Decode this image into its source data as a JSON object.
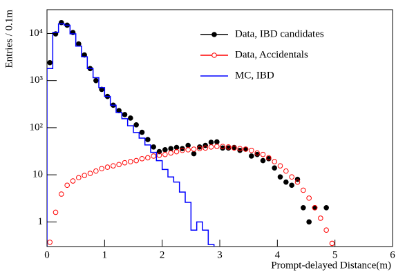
{
  "chart_data": {
    "type": "scatter",
    "xlabel": "Prompt-delayed Distance(m)",
    "ylabel": "Entries / 0.1m",
    "xlim": [
      0,
      6
    ],
    "xticks": [
      0,
      1,
      2,
      3,
      4,
      5,
      6
    ],
    "ylim": [
      0.3,
      32000
    ],
    "log_y": true,
    "yticks": [
      1,
      10,
      {
        "value": 100,
        "label": "10²"
      },
      {
        "value": 1000,
        "label": "10³"
      },
      {
        "value": 10000,
        "label": "10⁴"
      }
    ],
    "legend": "upper right",
    "series": [
      {
        "name": "Data, IBD candidates",
        "color": "#000000",
        "marker": "filled",
        "x": [
          0.05,
          0.15,
          0.25,
          0.35,
          0.45,
          0.55,
          0.65,
          0.75,
          0.85,
          0.95,
          1.05,
          1.15,
          1.25,
          1.35,
          1.45,
          1.55,
          1.65,
          1.75,
          1.85,
          1.95,
          2.05,
          2.15,
          2.25,
          2.35,
          2.45,
          2.55,
          2.65,
          2.75,
          2.85,
          2.95,
          3.05,
          3.15,
          3.25,
          3.35,
          3.45,
          3.55,
          3.65,
          3.75,
          3.85,
          3.95,
          4.05,
          4.15,
          4.25,
          4.35,
          4.45,
          4.55,
          4.65,
          4.85
        ],
        "values": [
          2400,
          9800,
          17000,
          15000,
          10500,
          6000,
          3500,
          1800,
          1000,
          650,
          460,
          300,
          230,
          190,
          160,
          115,
          80,
          56,
          39,
          31,
          34,
          36,
          38,
          36,
          42,
          28,
          39,
          42,
          49,
          50,
          37,
          37,
          38,
          33,
          35,
          25,
          27,
          20,
          22,
          14,
          9,
          7,
          6,
          8,
          2,
          1,
          2,
          2
        ]
      },
      {
        "name": "Data, Accidentals",
        "color": "#ff0000",
        "marker": "open",
        "x": [
          0.05,
          0.15,
          0.25,
          0.35,
          0.45,
          0.55,
          0.65,
          0.75,
          0.85,
          0.95,
          1.05,
          1.15,
          1.25,
          1.35,
          1.45,
          1.55,
          1.65,
          1.75,
          1.85,
          1.95,
          2.05,
          2.15,
          2.25,
          2.35,
          2.45,
          2.55,
          2.65,
          2.75,
          2.85,
          2.95,
          3.05,
          3.15,
          3.25,
          3.35,
          3.45,
          3.55,
          3.65,
          3.75,
          3.85,
          3.95,
          4.05,
          4.15,
          4.25,
          4.35,
          4.45,
          4.55,
          4.65,
          4.75,
          4.85,
          4.95
        ],
        "values": [
          0.37,
          1.6,
          3.9,
          6,
          7.4,
          8.7,
          9.7,
          10.7,
          12,
          13.5,
          14.5,
          15.5,
          16.5,
          18,
          19,
          20,
          22,
          23,
          25,
          26,
          27,
          29,
          31,
          33,
          34,
          35,
          36,
          37,
          39,
          40,
          40,
          39,
          37,
          36,
          35,
          33,
          29,
          27,
          23,
          19,
          15.5,
          12,
          9,
          7,
          4.7,
          3.2,
          2,
          1.2,
          0.67,
          0.35
        ]
      },
      {
        "name": "MC, IBD",
        "color": "#0000ff",
        "type": "histogram",
        "bins": [
          0,
          0.1,
          0.2,
          0.3,
          0.4,
          0.5,
          0.6,
          0.7,
          0.8,
          0.9,
          1.0,
          1.1,
          1.2,
          1.3,
          1.4,
          1.5,
          1.6,
          1.7,
          1.8,
          1.9,
          2.0,
          2.1,
          2.2,
          2.3,
          2.4,
          2.5,
          2.6,
          2.7,
          2.8,
          2.9
        ],
        "values": [
          1800,
          10500,
          16000,
          15000,
          9800,
          5400,
          3200,
          1800,
          1150,
          710,
          460,
          300,
          210,
          155,
          110,
          79,
          60,
          43,
          30,
          20,
          13,
          9,
          7,
          4.3,
          2.6,
          0.67,
          1,
          0.67,
          0.33
        ]
      }
    ]
  }
}
